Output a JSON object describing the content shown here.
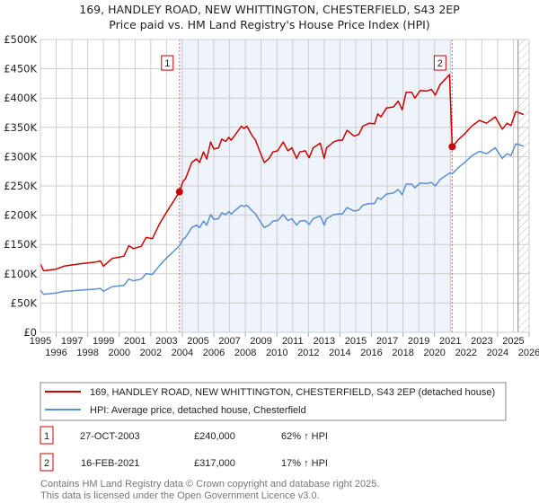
{
  "chart_data": {
    "type": "line",
    "title": "169, HANDLEY ROAD, NEW WHITTINGTON, CHESTERFIELD, S43 2EP",
    "subtitle": "Price paid vs. HM Land Registry's House Price Index (HPI)",
    "xlabel": "",
    "ylabel": "",
    "xlim": [
      1995,
      2026
    ],
    "ylim": [
      0,
      500000
    ],
    "grid": true,
    "y_ticks": [
      0,
      50000,
      100000,
      150000,
      200000,
      250000,
      300000,
      350000,
      400000,
      450000,
      500000
    ],
    "y_tick_labels": [
      "£0",
      "£50K",
      "£100K",
      "£150K",
      "£200K",
      "£250K",
      "£300K",
      "£350K",
      "£400K",
      "£450K",
      "£500K"
    ],
    "x_ticks": [
      1995,
      1996,
      1997,
      1998,
      1999,
      2000,
      2001,
      2002,
      2003,
      2004,
      2005,
      2006,
      2007,
      2008,
      2009,
      2010,
      2011,
      2012,
      2013,
      2014,
      2015,
      2016,
      2017,
      2018,
      2019,
      2020,
      2021,
      2022,
      2023,
      2024,
      2025,
      2026
    ],
    "x_tick_labels": [
      "1995",
      "1996",
      "1997",
      "1998",
      "1999",
      "2000",
      "2001",
      "2002",
      "2003",
      "2004",
      "2005",
      "2006",
      "2007",
      "2008",
      "2009",
      "2010",
      "2011",
      "2012",
      "2013",
      "2014",
      "2015",
      "2016",
      "2017",
      "2018",
      "2019",
      "2020",
      "2021",
      "2022",
      "2023",
      "2024",
      "2025",
      "2026"
    ],
    "shaded_range": [
      2003.82,
      2021.12
    ],
    "forecast_hatch_from": 2025.3,
    "x": [
      1995.0,
      1995.2,
      1996.0,
      1996.5,
      1997.5,
      1998.5,
      1998.8,
      1999.0,
      1999.55,
      2000.3,
      2000.6,
      2000.9,
      2001.4,
      2001.7,
      2002.1,
      2002.55,
      2003.0,
      2003.4,
      2003.82,
      2004.05,
      2004.2,
      2004.6,
      2004.9,
      2005.1,
      2005.35,
      2005.55,
      2005.8,
      2006.0,
      2006.3,
      2006.5,
      2006.75,
      2006.95,
      2007.1,
      2007.3,
      2007.75,
      2007.9,
      2008.1,
      2008.45,
      2008.65,
      2008.9,
      2009.2,
      2009.5,
      2009.75,
      2010.05,
      2010.4,
      2010.7,
      2010.95,
      2011.25,
      2011.45,
      2011.8,
      2012.05,
      2012.3,
      2012.75,
      2013.0,
      2013.15,
      2013.6,
      2013.9,
      2014.15,
      2014.45,
      2014.9,
      2015.2,
      2015.45,
      2015.85,
      2016.2,
      2016.4,
      2016.6,
      2016.95,
      2017.4,
      2017.7,
      2017.95,
      2018.2,
      2018.55,
      2018.75,
      2019.1,
      2019.5,
      2019.8,
      2020.05,
      2020.35,
      2020.95,
      2021.12,
      2021.55,
      2021.95,
      2022.4,
      2022.85,
      2023.3,
      2023.85,
      2024.3,
      2024.6,
      2024.85,
      2025.15,
      2025.65
    ],
    "series": [
      {
        "name": "169, HANDLEY ROAD, NEW WHITTINGTON, CHESTERFIELD, S43 2EP (detached house)",
        "color": "#cc0000",
        "values_k": [
          117,
          105,
          108,
          113,
          117,
          120,
          122,
          113,
          126,
          130,
          148,
          143,
          147,
          162,
          160,
          185,
          205,
          222,
          240,
          258,
          262,
          290,
          296,
          290,
          308,
          296,
          325,
          313,
          315,
          330,
          326,
          333,
          328,
          335,
          352,
          348,
          352,
          335,
          328,
          310,
          290,
          297,
          308,
          310,
          325,
          310,
          315,
          297,
          308,
          310,
          298,
          315,
          323,
          297,
          315,
          325,
          328,
          328,
          345,
          335,
          338,
          352,
          357,
          356,
          373,
          368,
          383,
          385,
          395,
          380,
          410,
          410,
          400,
          413,
          412,
          415,
          405,
          423,
          440,
          317,
          330,
          340,
          353,
          362,
          357,
          368,
          347,
          357,
          353,
          377,
          372
        ]
      },
      {
        "name": "HPI: Average price, detached house, Chesterfield",
        "color": "#5b8fd0",
        "values_k": [
          72,
          65,
          67,
          70,
          72,
          74,
          75,
          70,
          78,
          80,
          91,
          88,
          91,
          100,
          99,
          114,
          127,
          137,
          148,
          159,
          162,
          179,
          183,
          179,
          190,
          183,
          201,
          193,
          194,
          204,
          201,
          206,
          202,
          207,
          217,
          215,
          217,
          207,
          202,
          191,
          179,
          183,
          190,
          191,
          201,
          191,
          194,
          183,
          190,
          191,
          184,
          194,
          199,
          183,
          194,
          201,
          202,
          202,
          213,
          207,
          209,
          217,
          220,
          220,
          230,
          227,
          236,
          238,
          244,
          235,
          253,
          253,
          247,
          255,
          254,
          256,
          250,
          261,
          272,
          271,
          282,
          291,
          302,
          309,
          305,
          315,
          297,
          305,
          302,
          322,
          318
        ]
      }
    ],
    "sales": [
      {
        "id": "1",
        "x": 2003.82,
        "price": 240000,
        "date": "27-OCT-2003",
        "price_label": "£240,000",
        "hpi_label": "62% ↑ HPI"
      },
      {
        "id": "2",
        "x": 2021.12,
        "price": 317000,
        "date": "16-FEB-2021",
        "price_label": "£317,000",
        "hpi_label": "17% ↑ HPI"
      }
    ]
  },
  "footer": {
    "line1": "Contains HM Land Registry data © Crown copyright and database right 2025.",
    "line2": "This data is licensed under the Open Government Licence v3.0."
  }
}
